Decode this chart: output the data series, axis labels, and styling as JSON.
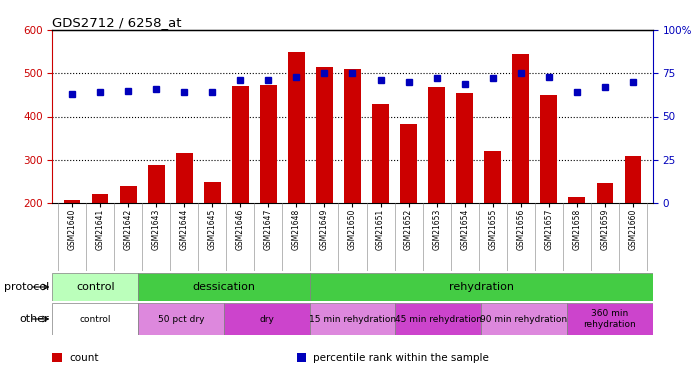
{
  "title": "GDS2712 / 6258_at",
  "samples": [
    "GSM21640",
    "GSM21641",
    "GSM21642",
    "GSM21643",
    "GSM21644",
    "GSM21645",
    "GSM21646",
    "GSM21647",
    "GSM21648",
    "GSM21649",
    "GSM21650",
    "GSM21651",
    "GSM21652",
    "GSM21653",
    "GSM21654",
    "GSM21655",
    "GSM21656",
    "GSM21657",
    "GSM21658",
    "GSM21659",
    "GSM21660"
  ],
  "counts": [
    207,
    220,
    240,
    288,
    315,
    248,
    470,
    472,
    550,
    515,
    510,
    430,
    382,
    468,
    455,
    320,
    545,
    450,
    215,
    247,
    308
  ],
  "percentiles": [
    63,
    64,
    65,
    66,
    64,
    64,
    71,
    71,
    73,
    75,
    75,
    71,
    70,
    72,
    69,
    72,
    75,
    73,
    64,
    67,
    70
  ],
  "ylim_left": [
    200,
    600
  ],
  "ylim_right": [
    0,
    100
  ],
  "yticks_left": [
    200,
    300,
    400,
    500,
    600
  ],
  "yticks_right": [
    0,
    25,
    50,
    75,
    100
  ],
  "bar_color": "#cc0000",
  "dot_color": "#0000bb",
  "grid_color": "#000000",
  "background_color": "#ffffff",
  "protocol_segments": [
    {
      "text": "control",
      "start": 0,
      "end": 3,
      "color": "#bbffbb"
    },
    {
      "text": "dessication",
      "start": 3,
      "end": 9,
      "color": "#44cc44"
    },
    {
      "text": "rehydration",
      "start": 9,
      "end": 21,
      "color": "#44cc44"
    }
  ],
  "other_segments": [
    {
      "text": "control",
      "start": 0,
      "end": 3,
      "color": "#ffffff"
    },
    {
      "text": "50 pct dry",
      "start": 3,
      "end": 6,
      "color": "#dd88dd"
    },
    {
      "text": "dry",
      "start": 6,
      "end": 9,
      "color": "#cc44cc"
    },
    {
      "text": "15 min rehydration",
      "start": 9,
      "end": 12,
      "color": "#dd88dd"
    },
    {
      "text": "45 min rehydration",
      "start": 12,
      "end": 15,
      "color": "#cc44cc"
    },
    {
      "text": "90 min rehydration",
      "start": 15,
      "end": 18,
      "color": "#dd88dd"
    },
    {
      "text": "360 min\nrehydration",
      "start": 18,
      "end": 21,
      "color": "#cc44cc"
    }
  ],
  "legend_items": [
    {
      "color": "#cc0000",
      "label": "count"
    },
    {
      "color": "#0000bb",
      "label": "percentile rank within the sample"
    }
  ]
}
